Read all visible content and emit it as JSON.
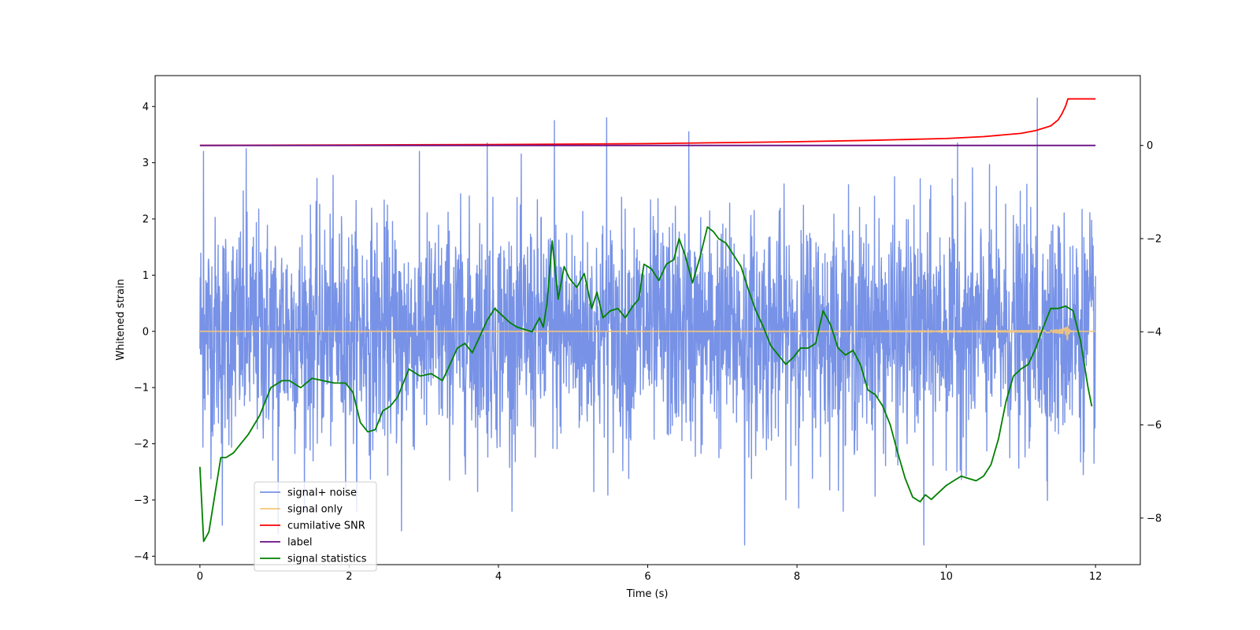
{
  "chart_data": {
    "type": "line",
    "title": "",
    "xlabel": "Time (s)",
    "ylabel": "Whitened strain",
    "y2label": "",
    "xlim": [
      -0.6,
      12.6
    ],
    "ylim": [
      -4.15,
      4.55
    ],
    "y2lim": [
      -9.0,
      1.5
    ],
    "x_ticks": [
      0,
      2,
      4,
      6,
      8,
      10,
      12
    ],
    "x_tick_labels": [
      "0",
      "2",
      "4",
      "6",
      "8",
      "10",
      "12"
    ],
    "y_ticks": [
      4,
      3,
      2,
      1,
      0,
      -1,
      -2,
      -3,
      -4
    ],
    "y_tick_labels": [
      "4",
      "3",
      "2",
      "1",
      "0",
      "−1",
      "−2",
      "−3",
      "−4"
    ],
    "y2_ticks": [
      0,
      -2,
      -4,
      -6,
      -8
    ],
    "y2_tick_labels": [
      "0",
      "−2",
      "−4",
      "−6",
      "−8"
    ],
    "legend_position": "bottom-left",
    "series": [
      {
        "name": "signal+ noise",
        "axis": "left",
        "color": "#7792e6",
        "style": "noise",
        "x_range": [
          0,
          12
        ],
        "noise_std": 1.0,
        "spikes": [
          [
            0.05,
            3.2
          ],
          [
            0.62,
            3.25
          ],
          [
            4.75,
            3.75
          ],
          [
            5.45,
            3.8
          ],
          [
            6.55,
            3.55
          ],
          [
            7.3,
            -3.8
          ],
          [
            9.7,
            -3.8
          ],
          [
            11.22,
            4.15
          ],
          [
            10.15,
            3.35
          ],
          [
            3.85,
            3.35
          ],
          [
            1.05,
            -3.6
          ],
          [
            2.7,
            -3.55
          ],
          [
            0.3,
            -3.45
          ]
        ],
        "values": []
      },
      {
        "name": "signal only",
        "axis": "left",
        "color": "#f5c77a",
        "style": "chirp",
        "x_range": [
          0,
          12
        ],
        "merger_time": 11.62,
        "peak_amplitude": 0.68,
        "values": []
      },
      {
        "name": "cumilative SNR",
        "axis": "right",
        "color": "#ff0000",
        "x": [
          0,
          2,
          4,
          6,
          8,
          9,
          10,
          10.5,
          11,
          11.2,
          11.4,
          11.5,
          11.55,
          11.6,
          11.63,
          12
        ],
        "values": [
          0.0,
          0.01,
          0.02,
          0.04,
          0.08,
          0.11,
          0.15,
          0.19,
          0.26,
          0.32,
          0.42,
          0.55,
          0.68,
          0.85,
          1.0,
          1.0
        ]
      },
      {
        "name": "label",
        "axis": "right",
        "color": "#6a0d83",
        "x": [
          0,
          12
        ],
        "values": [
          0,
          0
        ]
      },
      {
        "name": "signal statistics",
        "axis": "right",
        "color": "#008000",
        "x": [
          0,
          0.05,
          0.12,
          0.2,
          0.28,
          0.35,
          0.45,
          0.55,
          0.65,
          0.8,
          0.95,
          1.1,
          1.2,
          1.35,
          1.5,
          1.65,
          1.8,
          1.95,
          2.05,
          2.15,
          2.25,
          2.35,
          2.45,
          2.55,
          2.65,
          2.8,
          2.95,
          3.1,
          3.25,
          3.35,
          3.45,
          3.55,
          3.65,
          3.75,
          3.85,
          3.95,
          4.05,
          4.15,
          4.25,
          4.35,
          4.45,
          4.55,
          4.6,
          4.65,
          4.72,
          4.8,
          4.88,
          4.95,
          5.05,
          5.15,
          5.25,
          5.32,
          5.4,
          5.5,
          5.6,
          5.7,
          5.8,
          5.88,
          5.95,
          6.05,
          6.15,
          6.25,
          6.35,
          6.42,
          6.5,
          6.6,
          6.7,
          6.8,
          6.88,
          6.95,
          7.05,
          7.15,
          7.25,
          7.35,
          7.45,
          7.55,
          7.65,
          7.75,
          7.85,
          7.95,
          8.05,
          8.15,
          8.25,
          8.35,
          8.45,
          8.55,
          8.65,
          8.75,
          8.85,
          8.95,
          9.05,
          9.15,
          9.25,
          9.35,
          9.45,
          9.55,
          9.65,
          9.72,
          9.8,
          9.9,
          10.0,
          10.1,
          10.2,
          10.3,
          10.4,
          10.5,
          10.6,
          10.7,
          10.8,
          10.9,
          11.0,
          11.1,
          11.2,
          11.3,
          11.4,
          11.5,
          11.6,
          11.7,
          11.8,
          11.9,
          11.95
        ],
        "values": [
          -6.9,
          -8.5,
          -8.3,
          -7.5,
          -6.7,
          -6.7,
          -6.6,
          -6.4,
          -6.2,
          -5.8,
          -5.2,
          -5.05,
          -5.05,
          -5.2,
          -5.0,
          -5.05,
          -5.1,
          -5.1,
          -5.3,
          -5.95,
          -6.15,
          -6.1,
          -5.7,
          -5.6,
          -5.4,
          -4.8,
          -4.95,
          -4.9,
          -5.05,
          -4.7,
          -4.35,
          -4.25,
          -4.45,
          -4.1,
          -3.75,
          -3.5,
          -3.65,
          -3.8,
          -3.9,
          -3.95,
          -4.0,
          -3.7,
          -3.9,
          -3.4,
          -2.05,
          -3.3,
          -2.6,
          -2.85,
          -3.05,
          -2.75,
          -3.5,
          -3.15,
          -3.7,
          -3.55,
          -3.5,
          -3.7,
          -3.45,
          -3.3,
          -2.55,
          -2.65,
          -2.9,
          -2.55,
          -2.45,
          -2.0,
          -2.35,
          -2.95,
          -2.4,
          -1.75,
          -1.85,
          -2.0,
          -2.1,
          -2.35,
          -2.6,
          -3.1,
          -3.55,
          -3.9,
          -4.3,
          -4.5,
          -4.7,
          -4.55,
          -4.35,
          -4.35,
          -4.25,
          -3.55,
          -3.85,
          -4.35,
          -4.5,
          -4.4,
          -4.7,
          -5.25,
          -5.35,
          -5.6,
          -6.0,
          -6.6,
          -7.15,
          -7.55,
          -7.65,
          -7.5,
          -7.6,
          -7.45,
          -7.3,
          -7.2,
          -7.1,
          -7.15,
          -7.2,
          -7.1,
          -6.85,
          -6.3,
          -5.5,
          -4.95,
          -4.8,
          -4.7,
          -4.35,
          -3.9,
          -3.5,
          -3.5,
          -3.45,
          -3.55,
          -4.2,
          -5.2,
          -5.6
        ]
      }
    ]
  }
}
